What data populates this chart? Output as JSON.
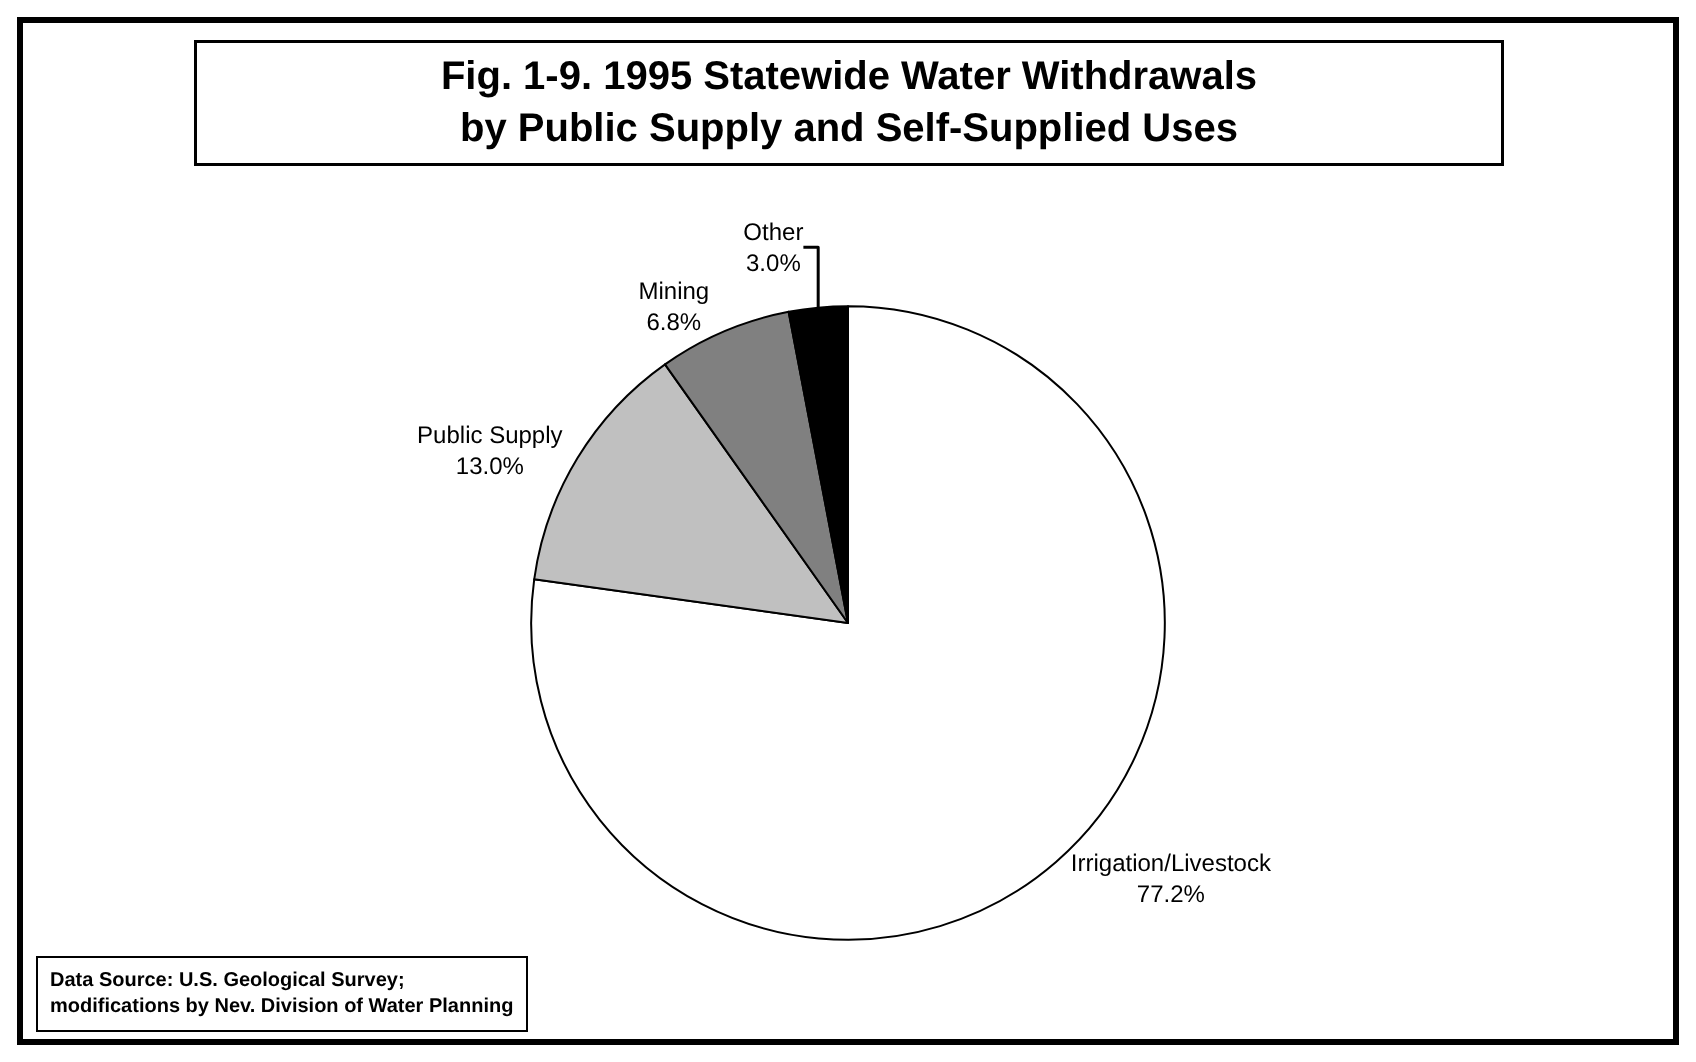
{
  "chart_data": {
    "type": "pie",
    "title": "Fig. 1-9. 1995 Statewide Water Withdrawals\nby Public Supply and Self-Supplied Uses",
    "categories": [
      "Irrigation/Livestock",
      "Public Supply",
      "Mining",
      "Other"
    ],
    "values": [
      77.2,
      13.0,
      6.8,
      3.0
    ],
    "value_labels": [
      "77.2%",
      "13.0%",
      "6.8%",
      "3.0%"
    ],
    "colors": [
      "#ffffff",
      "#c0c0c0",
      "#808080",
      "#000000"
    ],
    "legend": false,
    "annotations": [
      "Data Source: U.S. Geological Survey;\nmodifications by Nev. Division of Water Planning"
    ]
  }
}
